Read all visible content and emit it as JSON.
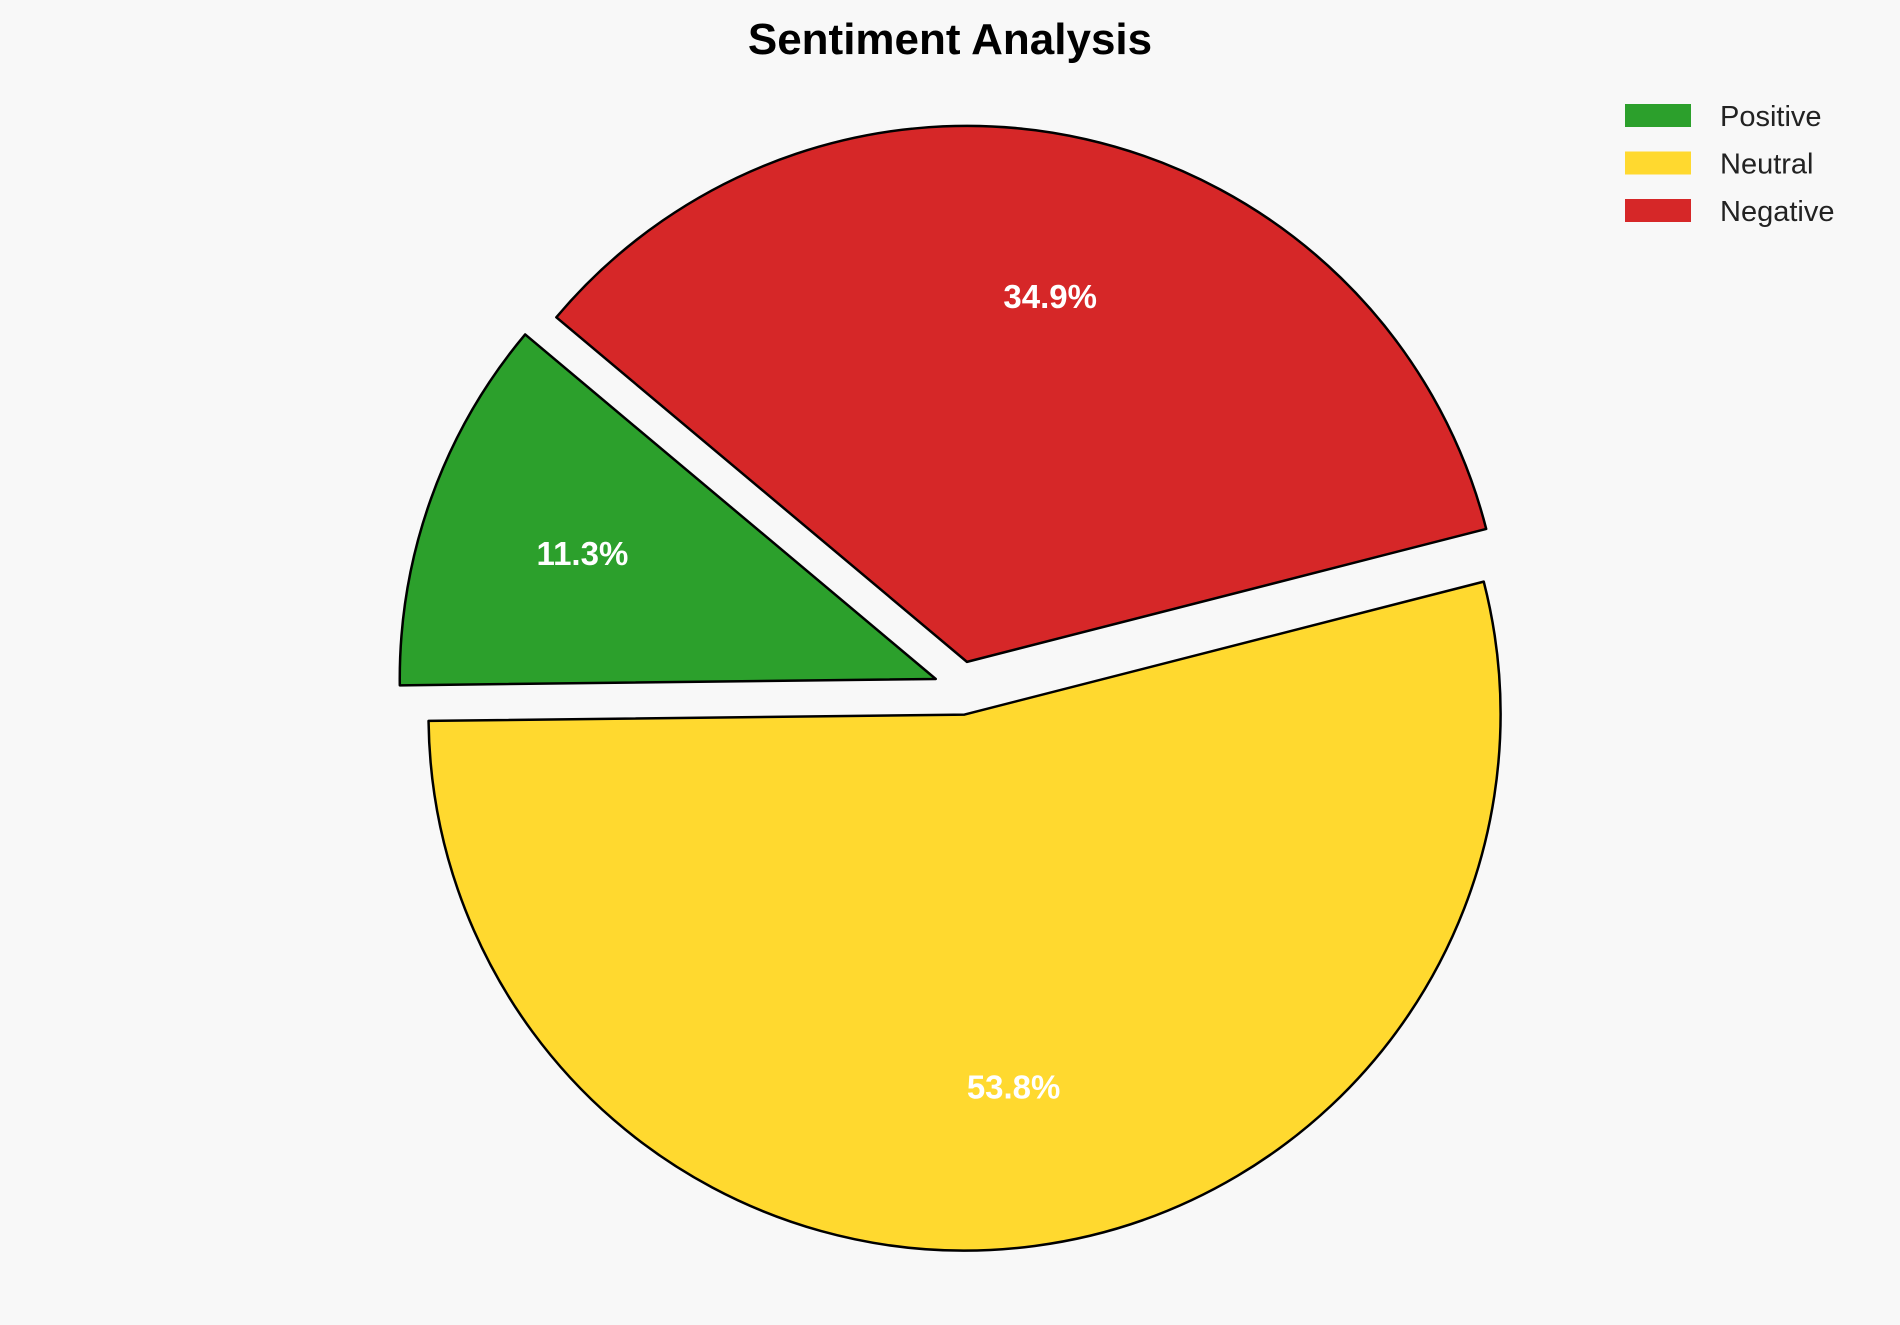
{
  "chart_data": {
    "type": "pie",
    "title": "Sentiment Analysis",
    "categories": [
      "Positive",
      "Neutral",
      "Negative"
    ],
    "values": [
      11.3,
      53.8,
      34.9
    ],
    "labels": [
      "11.3%",
      "53.8%",
      "34.9%"
    ],
    "colors": [
      "#2ca02c",
      "#ffd92f",
      "#d62728"
    ],
    "edge_color": "#000000",
    "start_angle_deg": 140,
    "direction": "counterclockwise",
    "explode": [
      0.05,
      0.05,
      0.05
    ],
    "legend_position": "top-right"
  }
}
